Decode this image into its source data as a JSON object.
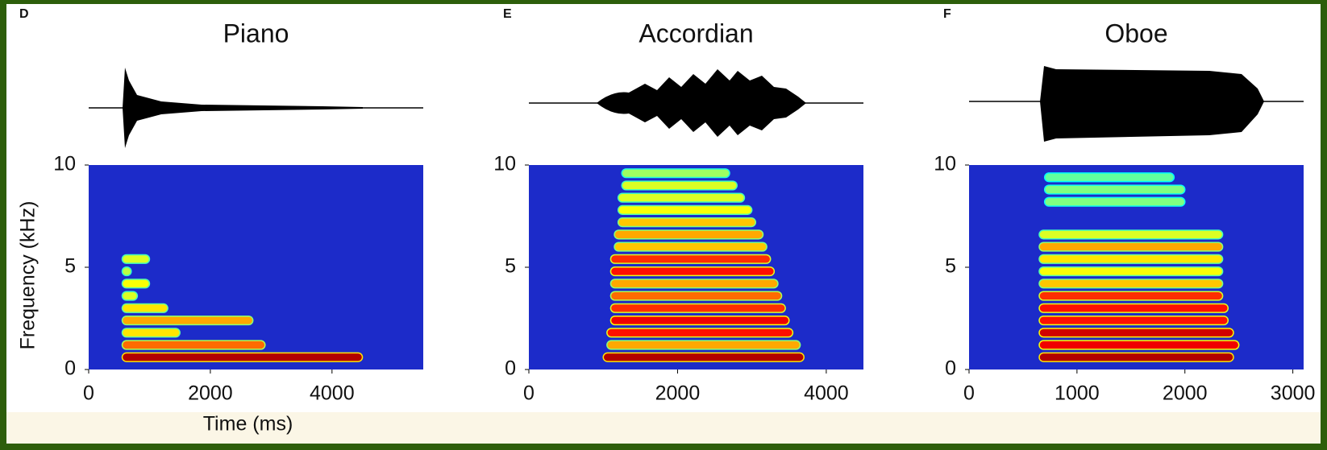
{
  "chart_data": [
    {
      "type": "spectrogram",
      "label": "D",
      "title": "Piano",
      "xlabel": "Time (ms)",
      "ylabel": "Frequency (kHz)",
      "xlim": [
        0,
        5500
      ],
      "xticks": [
        0,
        2000,
        4000
      ],
      "ylim": [
        0,
        10
      ],
      "yticks": [
        0,
        5,
        10
      ],
      "bands": [
        {
          "f": 0.6,
          "start": 550,
          "end": 4500,
          "level": 1
        },
        {
          "f": 1.2,
          "start": 550,
          "end": 2900,
          "level": 0.7
        },
        {
          "f": 1.8,
          "start": 550,
          "end": 1500,
          "level": 0.5
        },
        {
          "f": 2.4,
          "start": 550,
          "end": 2700,
          "level": 0.6
        },
        {
          "f": 3.0,
          "start": 550,
          "end": 1300,
          "level": 0.5
        },
        {
          "f": 3.6,
          "start": 550,
          "end": 800,
          "level": 0.4
        },
        {
          "f": 4.2,
          "start": 550,
          "end": 1000,
          "level": 0.45
        },
        {
          "f": 4.8,
          "start": 550,
          "end": 700,
          "level": 0.35
        },
        {
          "f": 5.4,
          "start": 550,
          "end": 1000,
          "level": 0.4
        }
      ]
    },
    {
      "type": "spectrogram",
      "label": "E",
      "title": "Accordian",
      "xlim": [
        0,
        4500
      ],
      "xticks": [
        0,
        2000,
        4000
      ],
      "ylim": [
        0,
        10
      ],
      "yticks": [
        0,
        5,
        10
      ],
      "bands": [
        {
          "f": 0.6,
          "start": 1000,
          "end": 3700,
          "level": 1
        },
        {
          "f": 1.2,
          "start": 1050,
          "end": 3650,
          "level": 0.6
        },
        {
          "f": 1.8,
          "start": 1050,
          "end": 3550,
          "level": 0.85
        },
        {
          "f": 2.4,
          "start": 1100,
          "end": 3500,
          "level": 0.9
        },
        {
          "f": 3.0,
          "start": 1100,
          "end": 3450,
          "level": 0.8
        },
        {
          "f": 3.6,
          "start": 1100,
          "end": 3400,
          "level": 0.7
        },
        {
          "f": 4.2,
          "start": 1100,
          "end": 3350,
          "level": 0.6
        },
        {
          "f": 4.8,
          "start": 1100,
          "end": 3300,
          "level": 0.85
        },
        {
          "f": 5.4,
          "start": 1100,
          "end": 3250,
          "level": 0.8
        },
        {
          "f": 6.0,
          "start": 1150,
          "end": 3200,
          "level": 0.55
        },
        {
          "f": 6.6,
          "start": 1150,
          "end": 3150,
          "level": 0.6
        },
        {
          "f": 7.2,
          "start": 1200,
          "end": 3050,
          "level": 0.55
        },
        {
          "f": 7.8,
          "start": 1200,
          "end": 3000,
          "level": 0.45
        },
        {
          "f": 8.4,
          "start": 1200,
          "end": 2900,
          "level": 0.4
        },
        {
          "f": 9.0,
          "start": 1250,
          "end": 2800,
          "level": 0.4
        },
        {
          "f": 9.6,
          "start": 1250,
          "end": 2700,
          "level": 0.3
        }
      ]
    },
    {
      "type": "spectrogram",
      "label": "F",
      "title": "Oboe",
      "xlim": [
        0,
        3100
      ],
      "xticks": [
        0,
        1000,
        2000,
        3000
      ],
      "ylim": [
        0,
        10
      ],
      "yticks": [
        0,
        5,
        10
      ],
      "bands": [
        {
          "f": 0.6,
          "start": 650,
          "end": 2450,
          "level": 1
        },
        {
          "f": 1.2,
          "start": 650,
          "end": 2500,
          "level": 0.9
        },
        {
          "f": 1.8,
          "start": 650,
          "end": 2450,
          "level": 0.95
        },
        {
          "f": 2.4,
          "start": 650,
          "end": 2400,
          "level": 0.85
        },
        {
          "f": 3.0,
          "start": 650,
          "end": 2400,
          "level": 0.85
        },
        {
          "f": 3.6,
          "start": 650,
          "end": 2350,
          "level": 0.8
        },
        {
          "f": 4.2,
          "start": 650,
          "end": 2350,
          "level": 0.55
        },
        {
          "f": 4.8,
          "start": 650,
          "end": 2350,
          "level": 0.45
        },
        {
          "f": 5.4,
          "start": 650,
          "end": 2350,
          "level": 0.5
        },
        {
          "f": 6.0,
          "start": 650,
          "end": 2350,
          "level": 0.6
        },
        {
          "f": 6.6,
          "start": 650,
          "end": 2350,
          "level": 0.4
        },
        {
          "f": 8.2,
          "start": 700,
          "end": 2000,
          "level": 0.25
        },
        {
          "f": 8.8,
          "start": 700,
          "end": 2000,
          "level": 0.25
        },
        {
          "f": 9.4,
          "start": 700,
          "end": 1900,
          "level": 0.2
        }
      ]
    }
  ]
}
